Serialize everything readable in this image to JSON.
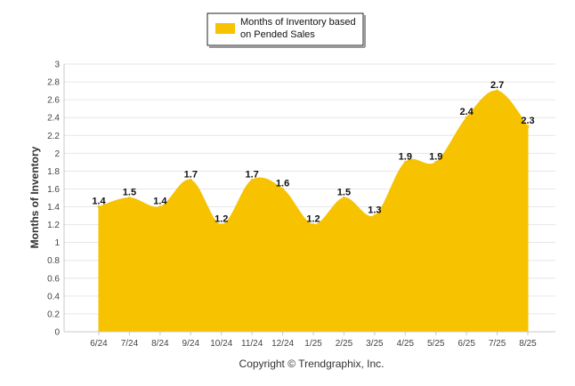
{
  "chart_data": {
    "type": "area",
    "categories": [
      "6/24",
      "7/24",
      "8/24",
      "9/24",
      "10/24",
      "11/24",
      "12/24",
      "1/25",
      "2/25",
      "3/25",
      "4/25",
      "5/25",
      "6/25",
      "7/25",
      "8/25"
    ],
    "series": [
      {
        "name": "Months of Inventory based on Pended Sales",
        "values": [
          1.4,
          1.5,
          1.4,
          1.7,
          1.2,
          1.7,
          1.6,
          1.2,
          1.5,
          1.3,
          1.9,
          1.9,
          2.4,
          2.7,
          2.3
        ],
        "color": "#F7C200"
      }
    ],
    "data_labels": [
      "1.4",
      "1.5",
      "1.4",
      "1.7",
      "1.2",
      "1.7",
      "1.6",
      "1.2",
      "1.5",
      "1.3",
      "1.9",
      "1.9",
      "2.4",
      "2.7",
      "2.3"
    ],
    "ylabel": "Months of Inventory",
    "xlabel": "",
    "ylim": [
      0,
      3
    ],
    "yticks": [
      "0",
      "0.2",
      "0.4",
      "0.6",
      "0.8",
      "1",
      "1.2",
      "1.4",
      "1.6",
      "1.8",
      "2",
      "2.2",
      "2.4",
      "2.6",
      "2.8",
      "3"
    ],
    "grid": true,
    "legend": {
      "position": "top-center",
      "lines": [
        "Months of Inventory based",
        "on Pended Sales"
      ]
    },
    "footer": "Copyright © Trendgraphix, Inc."
  }
}
